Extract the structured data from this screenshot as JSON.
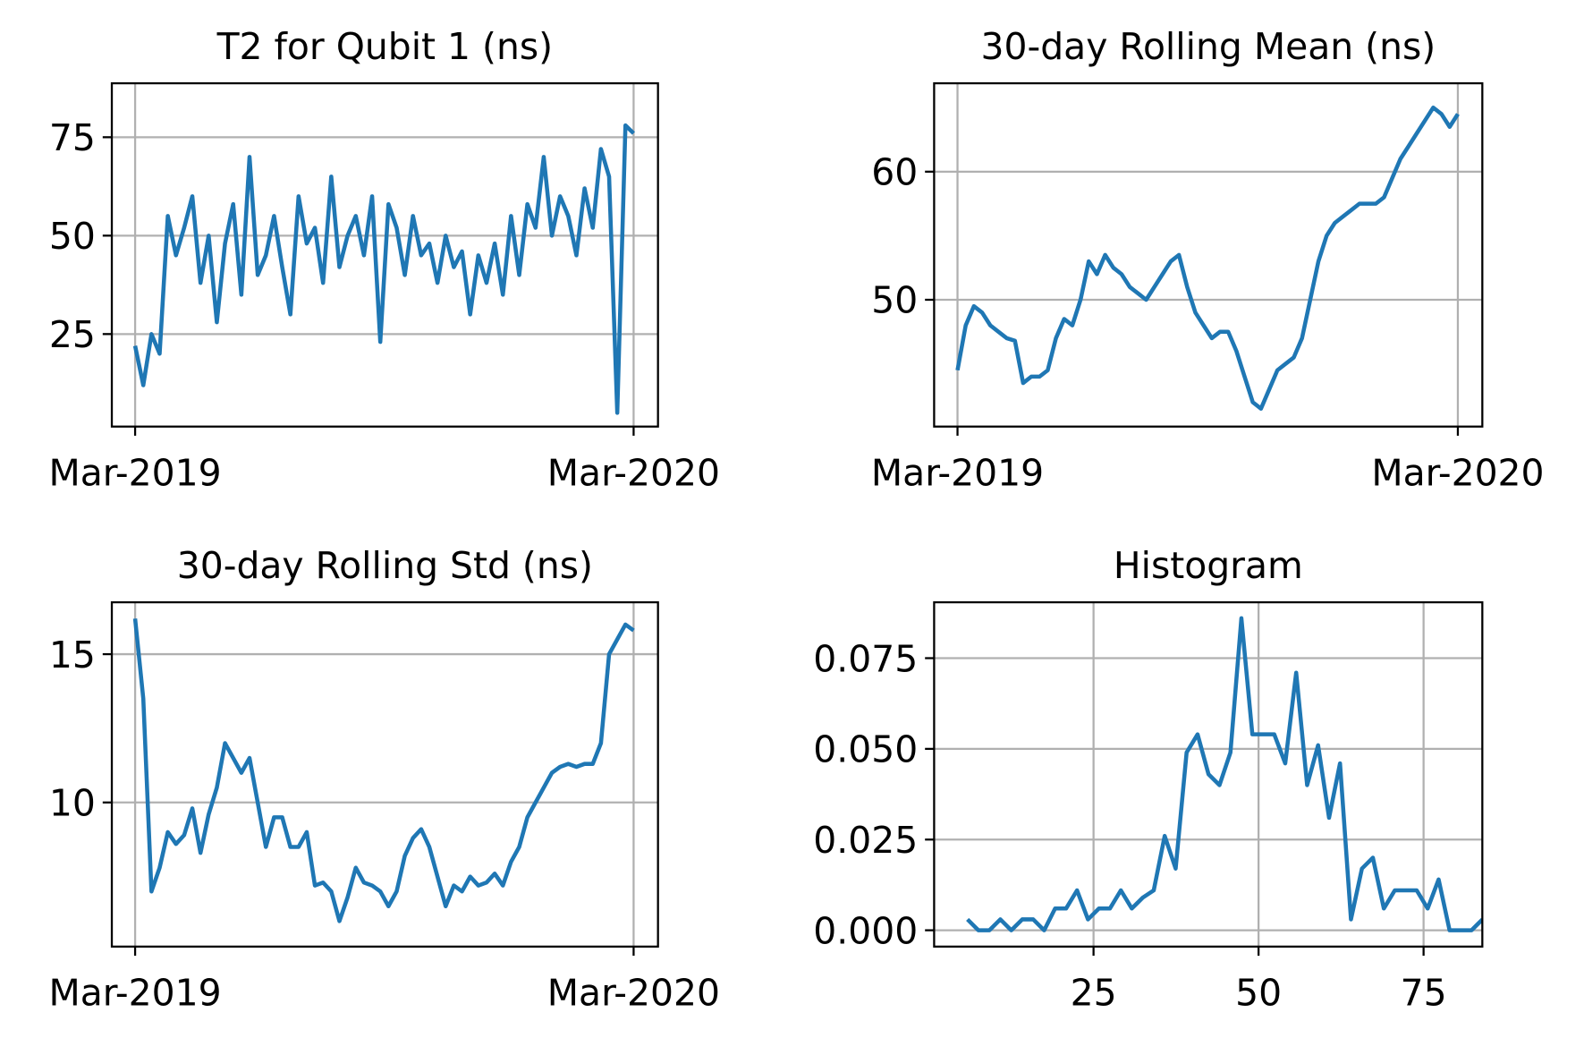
{
  "chart_data": [
    {
      "type": "line",
      "title": "T2 for Qubit 1 (ns)",
      "color": "#1f77b4",
      "grid": true,
      "x": [
        0,
        6,
        12,
        18,
        24,
        30,
        36,
        42,
        48,
        54,
        60,
        66,
        72,
        78,
        84,
        90,
        96,
        102,
        108,
        114,
        120,
        126,
        132,
        138,
        144,
        150,
        156,
        162,
        168,
        174,
        180,
        186,
        192,
        198,
        204,
        210,
        216,
        222,
        228,
        234,
        240,
        246,
        252,
        258,
        264,
        270,
        276,
        282,
        288,
        294,
        300,
        306,
        312,
        318,
        324,
        330,
        336,
        342,
        348,
        354,
        360,
        366
      ],
      "values": [
        22,
        12,
        25,
        20,
        55,
        45,
        52,
        60,
        38,
        50,
        28,
        48,
        58,
        35,
        70,
        40,
        45,
        55,
        42,
        30,
        60,
        48,
        52,
        38,
        65,
        42,
        50,
        55,
        45,
        60,
        23,
        58,
        52,
        40,
        55,
        45,
        48,
        38,
        50,
        42,
        46,
        30,
        45,
        38,
        48,
        35,
        55,
        40,
        58,
        52,
        70,
        50,
        60,
        55,
        45,
        62,
        52,
        72,
        65,
        5,
        78,
        76
      ],
      "xlim": [
        -17.1,
        383.9
      ],
      "ylim": [
        1.5,
        88.7
      ],
      "xticks": [
        {
          "value": 0,
          "label": "Mar-2019"
        },
        {
          "value": 366,
          "label": "Mar-2020"
        }
      ],
      "yticks": [
        25,
        50,
        75
      ]
    },
    {
      "type": "line",
      "title": "30-day Rolling Mean (ns)",
      "color": "#1f77b4",
      "grid": true,
      "x": [
        0,
        6,
        12,
        18,
        24,
        30,
        36,
        42,
        48,
        54,
        60,
        66,
        72,
        78,
        84,
        90,
        96,
        102,
        108,
        114,
        120,
        126,
        132,
        138,
        144,
        150,
        156,
        162,
        168,
        174,
        180,
        186,
        192,
        198,
        204,
        210,
        216,
        222,
        228,
        234,
        240,
        246,
        252,
        258,
        264,
        270,
        276,
        282,
        288,
        294,
        300,
        306,
        312,
        318,
        324,
        330,
        336,
        342,
        348,
        354,
        360,
        366
      ],
      "values": [
        44.5,
        48,
        49.5,
        49,
        48,
        47.5,
        47,
        46.8,
        43.5,
        44,
        44,
        44.5,
        47,
        48.5,
        48,
        50,
        53,
        52,
        53.5,
        52.5,
        52,
        51,
        50.5,
        50,
        51,
        52,
        53,
        53.5,
        51,
        49,
        48,
        47,
        47.5,
        47.5,
        46,
        44,
        42,
        41.5,
        43,
        44.5,
        45,
        45.5,
        47,
        50,
        53,
        55,
        56,
        56.5,
        57,
        57.5,
        57.5,
        57.5,
        58,
        59.5,
        61,
        62,
        63,
        64,
        65,
        64.5,
        63.5,
        64.5
      ],
      "xlim": [
        -17.1,
        383.9
      ],
      "ylim": [
        40.1,
        66.9
      ],
      "xticks": [
        {
          "value": 0,
          "label": "Mar-2019"
        },
        {
          "value": 366,
          "label": "Mar-2020"
        }
      ],
      "yticks": [
        50,
        60
      ]
    },
    {
      "type": "line",
      "title": "30-day Rolling Std (ns)",
      "color": "#1f77b4",
      "grid": true,
      "x": [
        0,
        6,
        12,
        18,
        24,
        30,
        36,
        42,
        48,
        54,
        60,
        66,
        72,
        78,
        84,
        90,
        96,
        102,
        108,
        114,
        120,
        126,
        132,
        138,
        144,
        150,
        156,
        162,
        168,
        174,
        180,
        186,
        192,
        198,
        204,
        210,
        216,
        222,
        228,
        234,
        240,
        246,
        252,
        258,
        264,
        270,
        276,
        282,
        288,
        294,
        300,
        306,
        312,
        318,
        324,
        330,
        336,
        342,
        348,
        354,
        360,
        366
      ],
      "values": [
        16.2,
        13.5,
        7,
        7.8,
        9,
        8.6,
        8.9,
        9.8,
        8.3,
        9.6,
        10.5,
        12,
        11.5,
        11,
        11.5,
        10,
        8.5,
        9.5,
        9.5,
        8.5,
        8.5,
        9,
        7.2,
        7.3,
        7,
        6,
        6.8,
        7.8,
        7.3,
        7.2,
        7,
        6.5,
        7,
        8.2,
        8.8,
        9.1,
        8.5,
        7.5,
        6.5,
        7.2,
        7,
        7.5,
        7.2,
        7.3,
        7.6,
        7.2,
        8,
        8.5,
        9.5,
        10,
        10.5,
        11,
        11.2,
        11.3,
        11.2,
        11.3,
        11.3,
        12,
        15,
        15.5,
        16,
        15.8
      ],
      "xlim": [
        -17.1,
        383.9
      ],
      "ylim": [
        5.14,
        16.75
      ],
      "xticks": [
        {
          "value": 0,
          "label": "Mar-2019"
        },
        {
          "value": 366,
          "label": "Mar-2020"
        }
      ],
      "yticks": [
        10,
        15
      ]
    },
    {
      "type": "line",
      "title": "Histogram",
      "color": "#1f77b4",
      "grid": true,
      "x": [
        5.9,
        7.56,
        9.22,
        10.88,
        12.54,
        14.2,
        15.86,
        17.52,
        19.18,
        20.84,
        22.5,
        24.16,
        25.82,
        27.48,
        29.14,
        30.8,
        32.46,
        34.12,
        35.78,
        37.44,
        39.1,
        40.76,
        42.42,
        44.08,
        45.74,
        47.4,
        49.06,
        50.72,
        52.38,
        54.04,
        55.7,
        57.36,
        59.02,
        60.68,
        62.34,
        64,
        65.66,
        67.32,
        68.98,
        70.64,
        72.3,
        73.96,
        75.62,
        77.28,
        78.94,
        80.6,
        82.26,
        83.92
      ],
      "values": [
        0.003,
        0,
        0,
        0.003,
        0,
        0.003,
        0.003,
        0,
        0.006,
        0.006,
        0.011,
        0.003,
        0.006,
        0.006,
        0.011,
        0.006,
        0.009,
        0.011,
        0.026,
        0.017,
        0.049,
        0.054,
        0.043,
        0.04,
        0.049,
        0.086,
        0.054,
        0.054,
        0.054,
        0.046,
        0.071,
        0.04,
        0.051,
        0.031,
        0.046,
        0.003,
        0.017,
        0.02,
        0.006,
        0.011,
        0.011,
        0.011,
        0.006,
        0.014,
        0,
        0,
        0,
        0.003
      ],
      "xlim": [
        0.85,
        83.9
      ],
      "ylim": [
        -0.0045,
        0.0904
      ],
      "xticks": [
        25,
        50,
        75
      ],
      "yticks": [
        {
          "value": 0,
          "label": "0.000"
        },
        {
          "value": 0.025,
          "label": "0.025"
        },
        {
          "value": 0.05,
          "label": "0.050"
        },
        {
          "value": 0.075,
          "label": "0.075"
        }
      ]
    }
  ]
}
